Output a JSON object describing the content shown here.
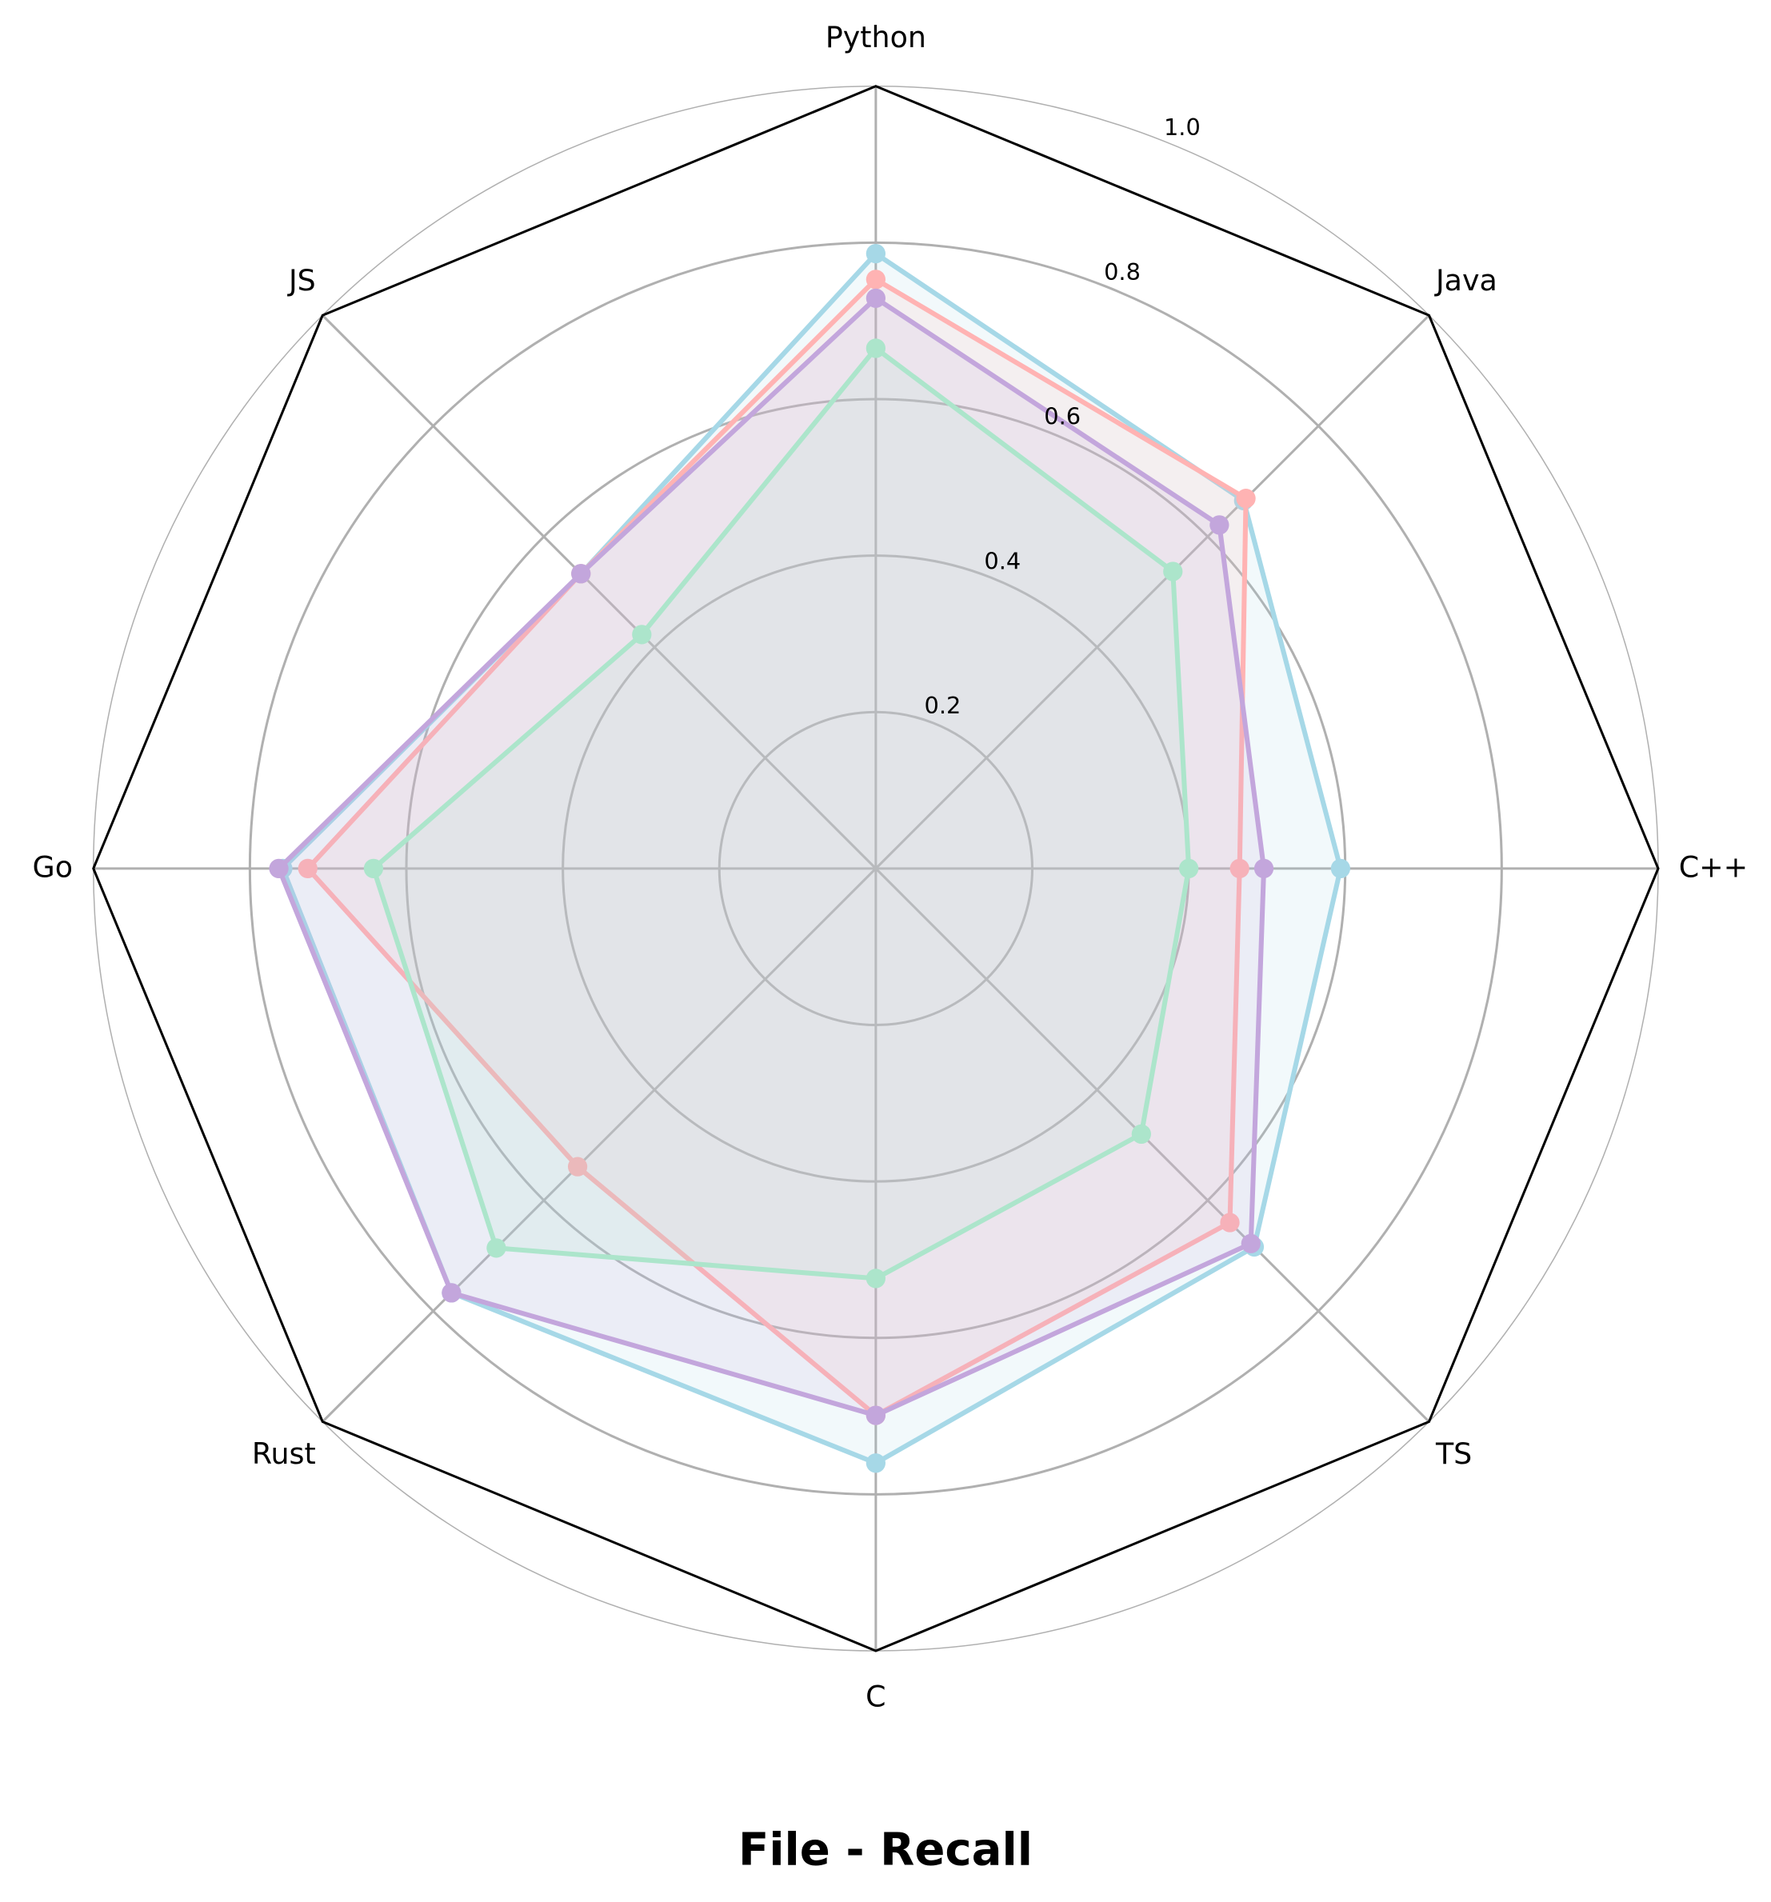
{
  "chart_data": {
    "type": "radar",
    "title": "File - Recall",
    "categories": [
      "Python",
      "Java",
      "C++",
      "TS",
      "C",
      "Rust",
      "Go",
      "JS"
    ],
    "ylim": [
      0,
      1
    ],
    "yticks": [
      0.2,
      0.4,
      0.6,
      0.8,
      {
        "value": 1,
        "label": "1.0"
      }
    ],
    "grid": true,
    "series": [
      {
        "color": "#a6d8e7",
        "values": [
          0.786,
          0.665,
          0.594,
          0.684,
          0.76,
          0.767,
          0.758,
          0.533
        ]
      },
      {
        "color": "#ffb3b3",
        "values": [
          0.753,
          0.669,
          0.465,
          0.64,
          0.699,
          0.539,
          0.726,
          0.533
        ]
      },
      {
        "color": "#a8f0c8",
        "values": [
          0.665,
          0.537,
          0.4,
          0.48,
          0.524,
          0.686,
          0.642,
          0.423
        ]
      },
      {
        "color": "#c3a6dc",
        "values": [
          0.729,
          0.621,
          0.496,
          0.678,
          0.699,
          0.767,
          0.763,
          0.533
        ]
      }
    ]
  }
}
